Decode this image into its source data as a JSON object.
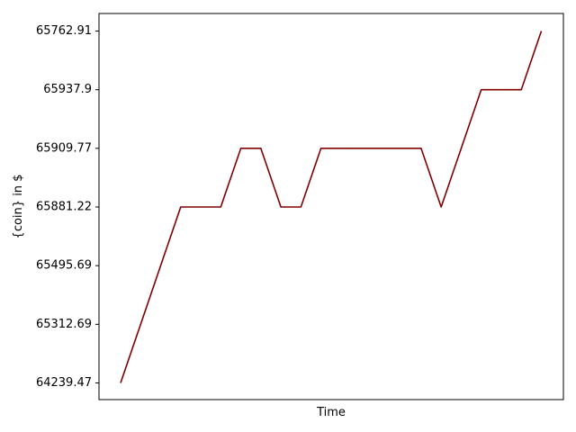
{
  "chart_data": {
    "type": "line",
    "title": "",
    "xlabel": "Time",
    "ylabel": "{coin} in $",
    "y_axis_scale": "categorical",
    "y_categories": [
      "64239.47",
      "65312.69",
      "65495.69",
      "65881.22",
      "65909.77",
      "65937.9",
      "65762.91"
    ],
    "x_tick_labels": [],
    "grid": false,
    "legend": "none",
    "series": [
      {
        "color": "#800000",
        "values": [
          "64239.47",
          "65312.69",
          "65495.69",
          "65881.22",
          "65881.22",
          "65881.22",
          "65909.77",
          "65909.77",
          "65881.22",
          "65881.22",
          "65909.77",
          "65909.77",
          "65909.77",
          "65909.77",
          "65909.77",
          "65909.77",
          "65881.22",
          "65909.77",
          "65937.9",
          "65937.9",
          "65937.9",
          "65762.91"
        ]
      }
    ]
  }
}
